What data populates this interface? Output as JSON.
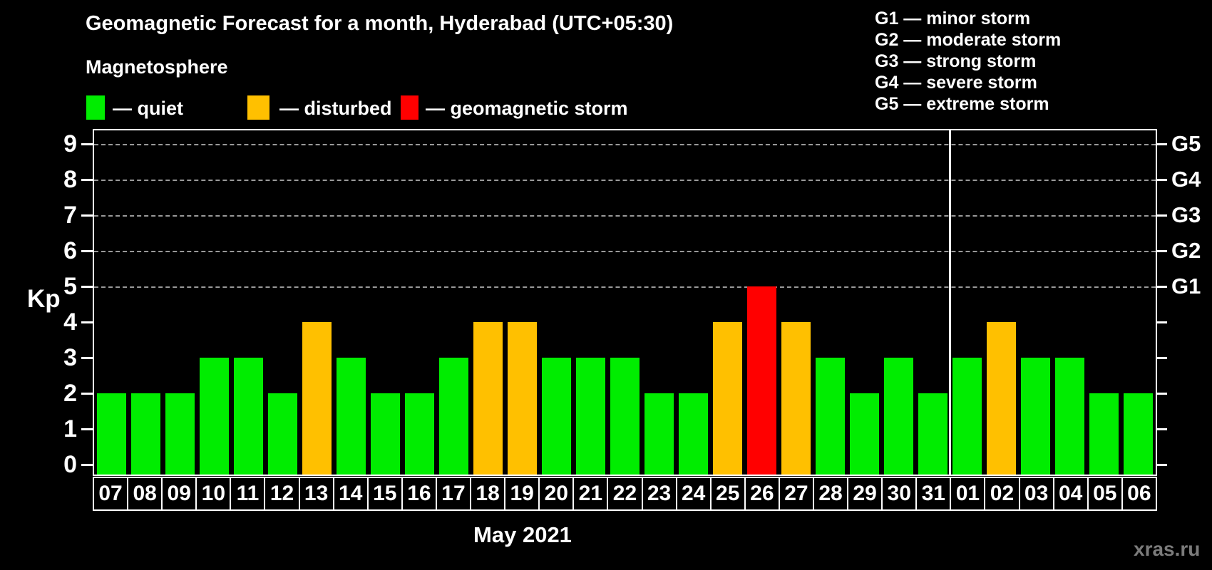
{
  "header": {
    "title": "Geomagnetic Forecast for a month, Hyderabad (UTC+05:30)",
    "subtitle": "Magnetosphere"
  },
  "legend": {
    "items": [
      {
        "key": "quiet",
        "label": "— quiet",
        "color": "#00ED00"
      },
      {
        "key": "disturbed",
        "label": "— disturbed",
        "color": "#FFC000"
      },
      {
        "key": "storm",
        "label": "— geomagnetic storm",
        "color": "#FF0000"
      }
    ]
  },
  "g_legend": {
    "items": [
      "G1 — minor storm",
      "G2 — moderate storm",
      "G3 — strong storm",
      "G4 — severe storm",
      "G5 — extreme storm"
    ]
  },
  "watermark": "xras.ru",
  "chart_data": {
    "type": "bar",
    "title": "Geomagnetic Forecast for a month, Hyderabad (UTC+05:30)",
    "subtitle": "Magnetosphere",
    "ylabel": "Kp",
    "month_label": "May 2021",
    "ylim": [
      0,
      9
    ],
    "y_ticks": [
      0,
      1,
      2,
      3,
      4,
      5,
      6,
      7,
      8,
      9
    ],
    "gridline_levels": [
      5,
      6,
      7,
      8,
      9
    ],
    "grid": "dashed horizontal at G-storm levels only",
    "right_axis_labels": [
      {
        "level": 5,
        "label": "G1"
      },
      {
        "level": 6,
        "label": "G2"
      },
      {
        "level": 7,
        "label": "G3"
      },
      {
        "level": 8,
        "label": "G4"
      },
      {
        "level": 9,
        "label": "G5"
      }
    ],
    "categories": [
      "07",
      "08",
      "09",
      "10",
      "11",
      "12",
      "13",
      "14",
      "15",
      "16",
      "17",
      "18",
      "19",
      "20",
      "21",
      "22",
      "23",
      "24",
      "25",
      "26",
      "27",
      "28",
      "29",
      "30",
      "31",
      "01",
      "02",
      "03",
      "04",
      "05",
      "06"
    ],
    "values": [
      2,
      2,
      2,
      3,
      3,
      2,
      4,
      3,
      2,
      2,
      3,
      4,
      4,
      3,
      3,
      3,
      2,
      2,
      4,
      5,
      4,
      3,
      2,
      3,
      2,
      3,
      4,
      3,
      3,
      2,
      2
    ],
    "statuses": [
      "quiet",
      "quiet",
      "quiet",
      "quiet",
      "quiet",
      "quiet",
      "disturbed",
      "quiet",
      "quiet",
      "quiet",
      "quiet",
      "disturbed",
      "disturbed",
      "quiet",
      "quiet",
      "quiet",
      "quiet",
      "quiet",
      "disturbed",
      "storm",
      "disturbed",
      "quiet",
      "quiet",
      "quiet",
      "quiet",
      "quiet",
      "disturbed",
      "quiet",
      "quiet",
      "quiet",
      "quiet"
    ],
    "status_colors": {
      "quiet": "#00ED00",
      "disturbed": "#FFC000",
      "storm": "#FF0000"
    },
    "month_separator_after_index": 24,
    "colors": {
      "background": "#000000",
      "axis": "#FFFFFF",
      "gridline": "#999999"
    }
  }
}
